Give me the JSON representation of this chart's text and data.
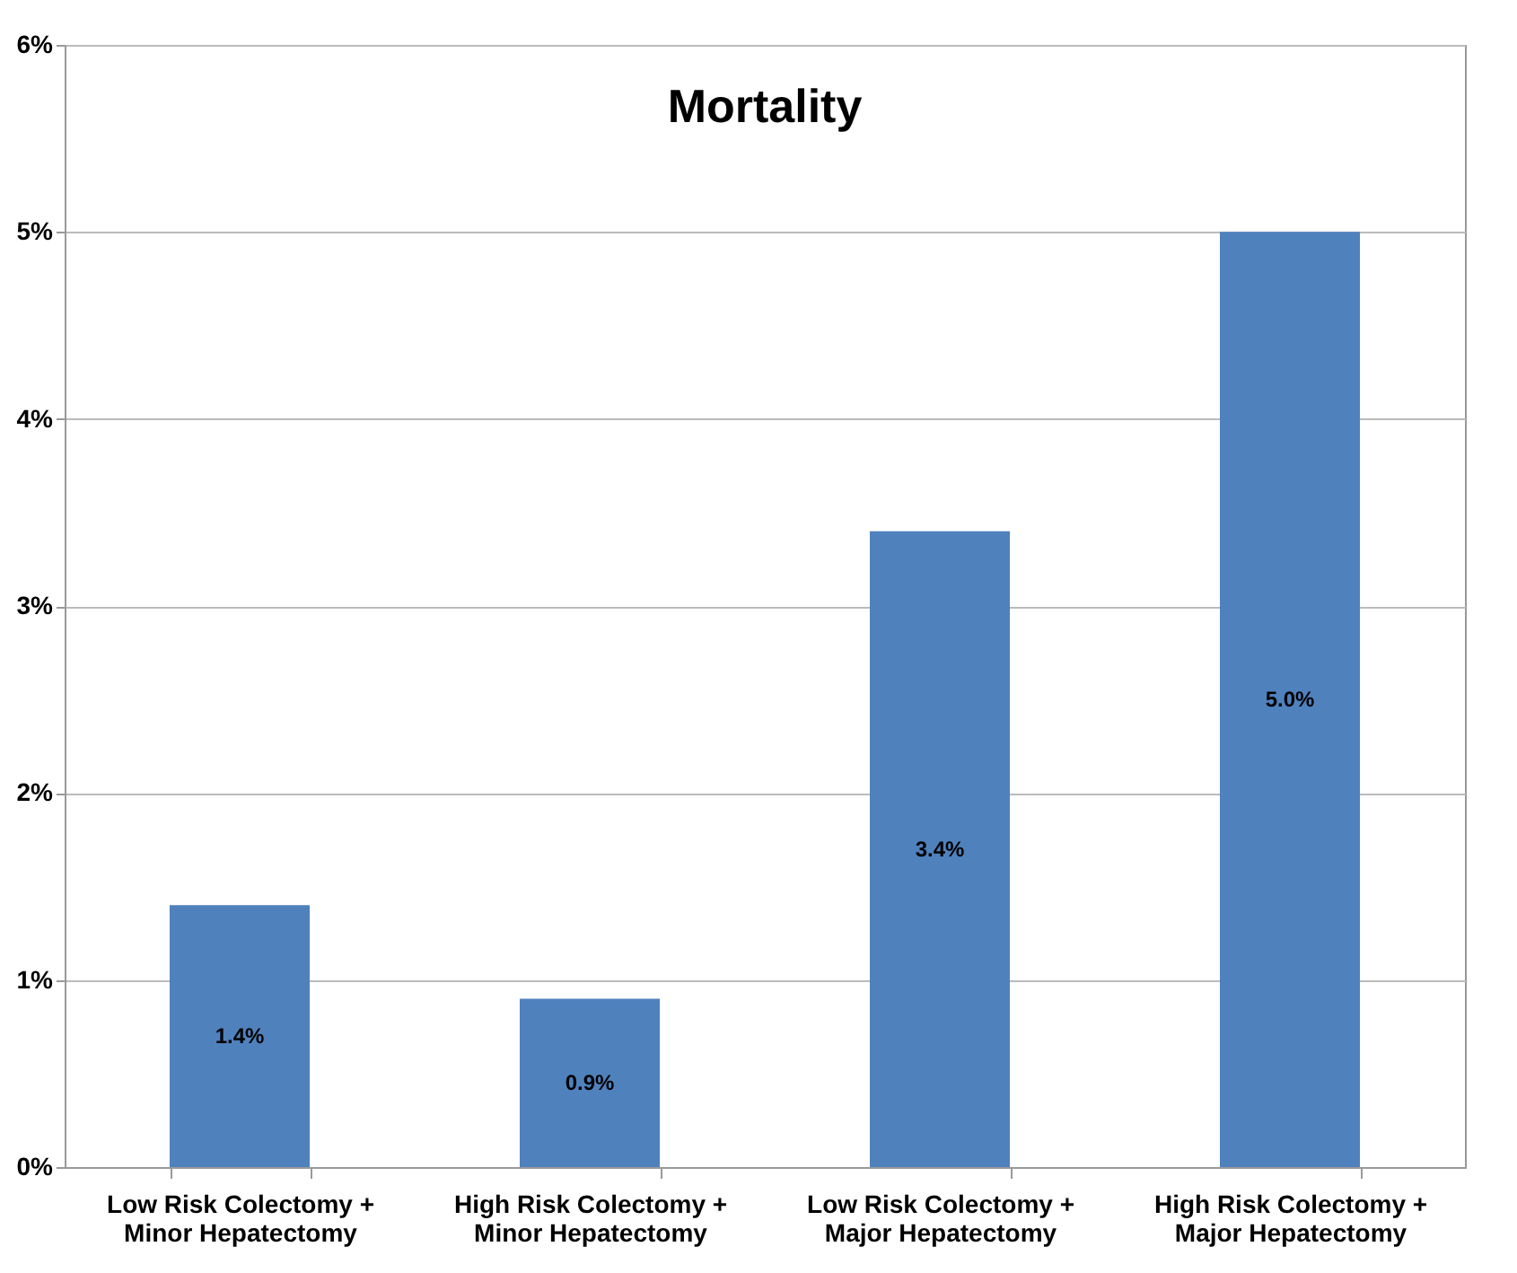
{
  "chart_data": {
    "type": "bar",
    "title": "Mortality",
    "categories": [
      "Low Risk Colectomy +\nMinor Hepatectomy",
      "High Risk Colectomy +\nMinor Hepatectomy",
      "Low Risk Colectomy +\nMajor Hepatectomy",
      "High Risk Colectomy +\nMajor Hepatectomy"
    ],
    "values": [
      1.4,
      0.9,
      3.4,
      5.0
    ],
    "value_labels": [
      "1.4%",
      "0.9%",
      "3.4%",
      "5.0%"
    ],
    "color": "#4f81bd",
    "ylim": [
      0,
      6
    ],
    "yticks": [
      {
        "value": 0,
        "label": "0%"
      },
      {
        "value": 1,
        "label": "1%"
      },
      {
        "value": 2,
        "label": "2%"
      },
      {
        "value": 3,
        "label": "3%"
      },
      {
        "value": 4,
        "label": "4%"
      },
      {
        "value": 5,
        "label": "5%"
      },
      {
        "value": 6,
        "label": "6%"
      }
    ],
    "grid": "y"
  }
}
